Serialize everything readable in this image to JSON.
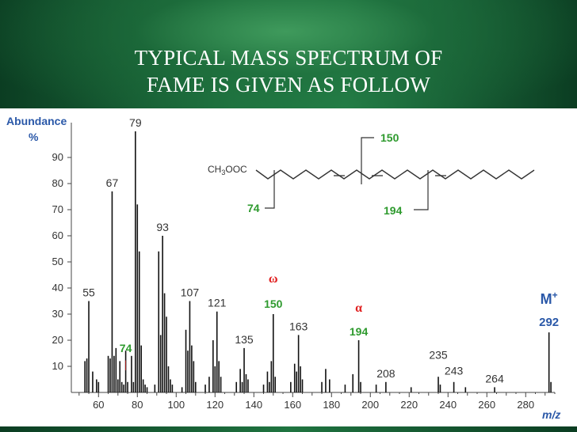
{
  "slide": {
    "title_line1": "TYPICAL MASS SPECTRUM OF",
    "title_line2": "FAME IS GIVEN AS FOLLOW"
  },
  "colors": {
    "title": "#ffffff",
    "axis_label": "#2a58a8",
    "green_label": "#2e9a2e",
    "red_label": "#e02020",
    "bars": "#111111"
  },
  "chart_data": {
    "type": "bar",
    "ylabel_line1": "Abundance",
    "ylabel_line2": "%",
    "xlabel": "m/z",
    "xlim": [
      46,
      295
    ],
    "ylim": [
      0,
      100
    ],
    "x_ticks": [
      60,
      80,
      100,
      120,
      140,
      160,
      180,
      200,
      220,
      240,
      260,
      280
    ],
    "y_ticks": [
      10,
      20,
      30,
      40,
      50,
      60,
      70,
      80,
      90
    ],
    "peaks": [
      [
        55,
        35
      ],
      [
        53,
        12
      ],
      [
        54,
        13
      ],
      [
        57,
        8
      ],
      [
        59,
        5
      ],
      [
        60,
        4
      ],
      [
        65,
        14
      ],
      [
        66,
        13
      ],
      [
        67,
        77
      ],
      [
        68,
        14
      ],
      [
        69,
        17
      ],
      [
        70,
        5
      ],
      [
        71,
        12
      ],
      [
        72,
        4
      ],
      [
        73,
        3
      ],
      [
        74,
        16
      ],
      [
        75,
        4
      ],
      [
        77,
        14
      ],
      [
        78,
        4
      ],
      [
        79,
        100
      ],
      [
        80,
        72
      ],
      [
        81,
        54
      ],
      [
        82,
        18
      ],
      [
        83,
        5
      ],
      [
        84,
        3
      ],
      [
        85,
        2
      ],
      [
        89,
        3
      ],
      [
        91,
        54
      ],
      [
        92,
        22
      ],
      [
        93,
        60
      ],
      [
        94,
        38
      ],
      [
        95,
        29
      ],
      [
        96,
        10
      ],
      [
        97,
        5
      ],
      [
        98,
        3
      ],
      [
        103,
        2
      ],
      [
        105,
        24
      ],
      [
        106,
        16
      ],
      [
        107,
        35
      ],
      [
        108,
        18
      ],
      [
        109,
        12
      ],
      [
        110,
        4
      ],
      [
        115,
        3
      ],
      [
        117,
        6
      ],
      [
        119,
        20
      ],
      [
        120,
        10
      ],
      [
        121,
        31
      ],
      [
        122,
        12
      ],
      [
        123,
        6
      ],
      [
        131,
        4
      ],
      [
        133,
        9
      ],
      [
        134,
        4
      ],
      [
        135,
        17
      ],
      [
        136,
        7
      ],
      [
        137,
        5
      ],
      [
        145,
        3
      ],
      [
        147,
        8
      ],
      [
        148,
        4
      ],
      [
        149,
        12
      ],
      [
        150,
        30
      ],
      [
        151,
        6
      ],
      [
        159,
        4
      ],
      [
        161,
        11
      ],
      [
        162,
        8
      ],
      [
        163,
        22
      ],
      [
        164,
        10
      ],
      [
        165,
        5
      ],
      [
        175,
        4
      ],
      [
        177,
        9
      ],
      [
        179,
        5
      ],
      [
        187,
        3
      ],
      [
        191,
        7
      ],
      [
        194,
        20
      ],
      [
        195,
        4
      ],
      [
        203,
        3
      ],
      [
        208,
        4
      ],
      [
        221,
        2
      ],
      [
        235,
        6
      ],
      [
        236,
        3
      ],
      [
        243,
        4
      ],
      [
        249,
        2
      ],
      [
        264,
        2
      ],
      [
        292,
        23
      ],
      [
        293,
        4
      ]
    ],
    "peak_labels": [
      {
        "mz": 55,
        "text": "55",
        "y": 35
      },
      {
        "mz": 67,
        "text": "67",
        "y": 77
      },
      {
        "mz": 79,
        "text": "79",
        "y": 100
      },
      {
        "mz": 93,
        "text": "93",
        "y": 60
      },
      {
        "mz": 107,
        "text": "107",
        "y": 35
      },
      {
        "mz": 121,
        "text": "121",
        "y": 31
      },
      {
        "mz": 135,
        "text": "135",
        "y": 17
      },
      {
        "mz": 163,
        "text": "163",
        "y": 22
      },
      {
        "mz": 208,
        "text": "208",
        "y": 4
      },
      {
        "mz": 235,
        "text": "235",
        "y": 11
      },
      {
        "mz": 243,
        "text": "243",
        "y": 5
      },
      {
        "mz": 264,
        "text": "264",
        "y": 2
      }
    ],
    "annotations": {
      "omega": "ω",
      "alpha": "α",
      "label_150": "150",
      "label_194": "194",
      "label_74": "74",
      "tick_74": "|",
      "mplus": "M",
      "mplus_sup": "+",
      "label_292": "292"
    },
    "structure": {
      "formula": "CH",
      "formula_sub": "3",
      "formula_rest": "OOC",
      "frag_150": "150",
      "frag_74": "74",
      "frag_194": "194"
    }
  }
}
